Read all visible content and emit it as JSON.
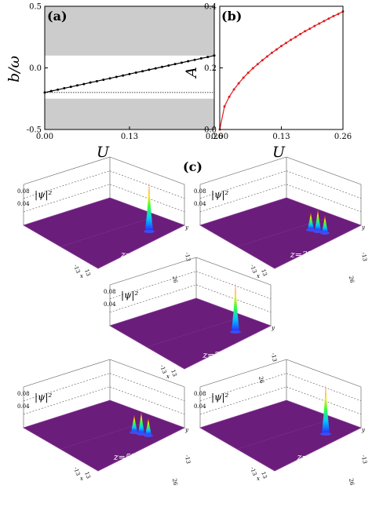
{
  "colors": {
    "band": "#cccccc",
    "curve_b": "#000000",
    "curve_A": "#e31a1c",
    "surface": "#6a1d7a",
    "surface_edge": "#8a3a9a"
  },
  "chart_data": [
    {
      "panel": "(a)",
      "type": "line",
      "xlabel": "U",
      "ylabel": "b/ω",
      "xlim": [
        0,
        0.26
      ],
      "ylim": [
        -0.5,
        0.5
      ],
      "xticks": [
        "0.00",
        "0.13",
        "0.26"
      ],
      "yticks": [
        "-0.5",
        "0.0",
        "0.5"
      ],
      "shaded_bands": [
        [
          0.1,
          0.5
        ],
        [
          -0.5,
          -0.25
        ]
      ],
      "reference_line_y": -0.2,
      "series": [
        {
          "x": [
            0,
            0.01,
            0.02,
            0.03,
            0.04,
            0.05,
            0.06,
            0.07,
            0.08,
            0.09,
            0.1,
            0.11,
            0.12,
            0.13,
            0.14,
            0.15,
            0.16,
            0.17,
            0.18,
            0.19,
            0.2,
            0.21,
            0.22,
            0.23,
            0.24,
            0.25,
            0.26
          ],
          "y": [
            -0.2,
            -0.188,
            -0.177,
            -0.165,
            -0.154,
            -0.142,
            -0.131,
            -0.119,
            -0.108,
            -0.096,
            -0.085,
            -0.073,
            -0.062,
            -0.05,
            -0.038,
            -0.027,
            -0.015,
            -0.004,
            0.008,
            0.019,
            0.031,
            0.042,
            0.054,
            0.065,
            0.077,
            0.088,
            0.1
          ]
        }
      ]
    },
    {
      "panel": "(b)",
      "type": "line",
      "xlabel": "U",
      "ylabel": "A",
      "xlim": [
        0,
        0.26
      ],
      "ylim": [
        0,
        0.4
      ],
      "xticks": [
        "0.00",
        "0.13",
        "0.26"
      ],
      "yticks": [
        "0.0",
        "0.2",
        "0.4"
      ],
      "series": [
        {
          "x": [
            0,
            0.01,
            0.02,
            0.03,
            0.04,
            0.05,
            0.06,
            0.07,
            0.08,
            0.09,
            0.1,
            0.11,
            0.12,
            0.13,
            0.14,
            0.15,
            0.16,
            0.17,
            0.18,
            0.19,
            0.2,
            0.21,
            0.22,
            0.23,
            0.24,
            0.25,
            0.26
          ],
          "y": [
            0.0,
            0.075,
            0.106,
            0.13,
            0.15,
            0.168,
            0.184,
            0.199,
            0.212,
            0.225,
            0.237,
            0.249,
            0.26,
            0.271,
            0.281,
            0.291,
            0.3,
            0.31,
            0.319,
            0.327,
            0.336,
            0.344,
            0.352,
            0.36,
            0.368,
            0.375,
            0.383
          ]
        }
      ]
    }
  ],
  "panel_c": {
    "label": "(c)",
    "zaxis_label": "|ψ|²",
    "zticks": [
      "0.08",
      "0.04"
    ],
    "x_edge_ticks": [
      "-13",
      "13"
    ],
    "y_edge_ticks": [
      "26",
      "-13"
    ],
    "axis_letter_x": "x",
    "axis_letter_y": "y",
    "plots": [
      {
        "z_label": "z=0",
        "peaks": [
          1.0
        ]
      },
      {
        "z_label": "z=3Z/8",
        "peaks": [
          0.35,
          0.45,
          0.35
        ]
      },
      {
        "z_label": "z=Z/2",
        "peaks": [
          1.0
        ]
      },
      {
        "z_label": "z=5Z/8",
        "peaks": [
          0.35,
          0.45,
          0.35
        ]
      },
      {
        "z_label": "z=Z",
        "peaks": [
          1.0
        ]
      }
    ]
  }
}
